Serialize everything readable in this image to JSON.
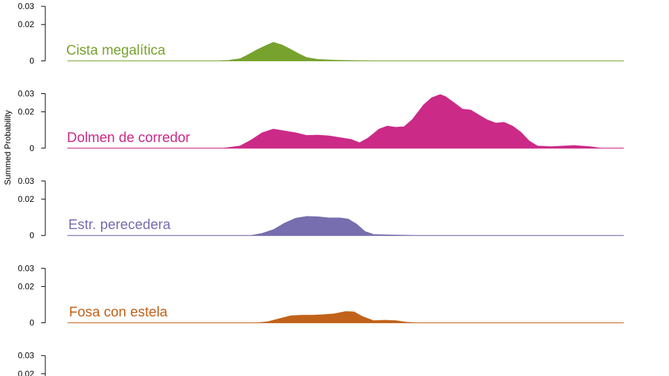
{
  "chart_data": {
    "type": "area",
    "ylabel": "Summed Probability",
    "ylim": [
      0,
      0.03
    ],
    "y_ticks": [
      {
        "value": 0,
        "label": "0"
      },
      {
        "value": 0.02,
        "label": "0.02"
      },
      {
        "value": 0.03,
        "label": "0.03"
      }
    ],
    "x_range": [
      0,
      100
    ],
    "series": [
      {
        "name": "Cista megalítica",
        "color": "#77a22e",
        "points": [
          [
            0,
            0
          ],
          [
            27,
            0
          ],
          [
            29,
            0.0003
          ],
          [
            31,
            0.0012
          ],
          [
            32.5,
            0.0035
          ],
          [
            34,
            0.006
          ],
          [
            35.5,
            0.0082
          ],
          [
            37,
            0.0102
          ],
          [
            38.5,
            0.0088
          ],
          [
            40,
            0.0065
          ],
          [
            41.5,
            0.004
          ],
          [
            43,
            0.0018
          ],
          [
            45,
            0.0008
          ],
          [
            48,
            0.0004
          ],
          [
            51,
            0.0002
          ],
          [
            55,
            0
          ],
          [
            100,
            0
          ]
        ]
      },
      {
        "name": "Dolmen de corredor",
        "color": "#cb2a87",
        "points": [
          [
            0,
            0
          ],
          [
            28,
            0
          ],
          [
            31,
            0.0012
          ],
          [
            33,
            0.0045
          ],
          [
            35,
            0.0085
          ],
          [
            37,
            0.0105
          ],
          [
            39,
            0.0095
          ],
          [
            41,
            0.0085
          ],
          [
            43,
            0.007
          ],
          [
            45,
            0.0072
          ],
          [
            47,
            0.0068
          ],
          [
            49,
            0.0058
          ],
          [
            51,
            0.0048
          ],
          [
            52.5,
            0.003
          ],
          [
            54,
            0.0055
          ],
          [
            56,
            0.0105
          ],
          [
            57.5,
            0.0122
          ],
          [
            59,
            0.0115
          ],
          [
            60.5,
            0.0118
          ],
          [
            62,
            0.0158
          ],
          [
            64,
            0.0238
          ],
          [
            65.5,
            0.0278
          ],
          [
            67,
            0.0295
          ],
          [
            68,
            0.0283
          ],
          [
            69.5,
            0.025
          ],
          [
            71,
            0.0215
          ],
          [
            72.5,
            0.021
          ],
          [
            74,
            0.0182
          ],
          [
            75.5,
            0.0155
          ],
          [
            77,
            0.0138
          ],
          [
            78.5,
            0.0142
          ],
          [
            80,
            0.0122
          ],
          [
            81.5,
            0.0088
          ],
          [
            83,
            0.004
          ],
          [
            84.5,
            0.0012
          ],
          [
            87,
            0.0008
          ],
          [
            91,
            0.0015
          ],
          [
            94,
            0.0008
          ],
          [
            96,
            0
          ],
          [
            100,
            0
          ]
        ]
      },
      {
        "name": "Estr. perecedera",
        "color": "#766eae",
        "points": [
          [
            0,
            0
          ],
          [
            33,
            0
          ],
          [
            35,
            0.0012
          ],
          [
            37,
            0.0032
          ],
          [
            39,
            0.0068
          ],
          [
            41,
            0.0095
          ],
          [
            43,
            0.0105
          ],
          [
            45,
            0.0103
          ],
          [
            47,
            0.0097
          ],
          [
            49,
            0.0097
          ],
          [
            50.5,
            0.009
          ],
          [
            52,
            0.0062
          ],
          [
            53.5,
            0.0022
          ],
          [
            55,
            0.0006
          ],
          [
            57,
            0.0004
          ],
          [
            60,
            0.0002
          ],
          [
            63,
            0
          ],
          [
            100,
            0
          ]
        ]
      },
      {
        "name": "Fosa con estela",
        "color": "#c1621a",
        "points": [
          [
            0,
            0
          ],
          [
            34,
            0
          ],
          [
            36,
            0.0006
          ],
          [
            38,
            0.0022
          ],
          [
            40,
            0.0038
          ],
          [
            42,
            0.0042
          ],
          [
            44,
            0.0042
          ],
          [
            46,
            0.0045
          ],
          [
            48,
            0.005
          ],
          [
            50,
            0.0062
          ],
          [
            51.5,
            0.006
          ],
          [
            53,
            0.0035
          ],
          [
            55,
            0.0012
          ],
          [
            57,
            0.0014
          ],
          [
            59,
            0.0012
          ],
          [
            61,
            0.0003
          ],
          [
            63,
            0
          ],
          [
            100,
            0
          ]
        ]
      },
      {
        "name": "",
        "color": "#000000",
        "points": []
      }
    ]
  }
}
